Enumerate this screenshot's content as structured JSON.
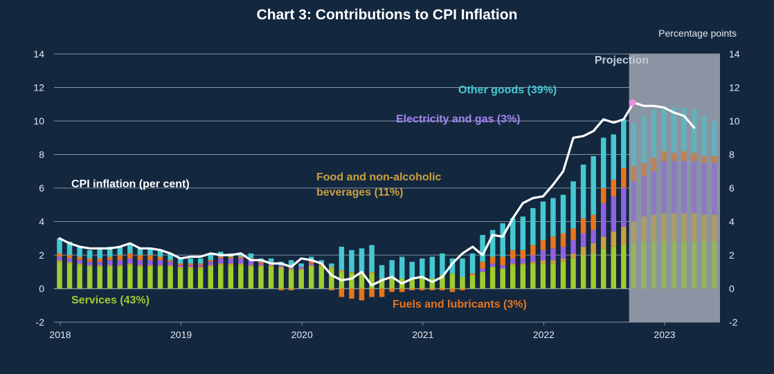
{
  "chart_data": {
    "type": "bar",
    "stacked": true,
    "title": "Chart 3: Contributions to CPI Inflation",
    "unit_label": "Percentage points",
    "projection_label": "Projection",
    "ylim": [
      -2,
      14
    ],
    "yticks": [
      "14",
      "12",
      "10",
      "8",
      "6",
      "4",
      "2",
      "0",
      "-2"
    ],
    "xticks": [
      "2018",
      "2019",
      "2020",
      "2021",
      "2022",
      "2023"
    ],
    "x_start": "2018-01",
    "projection_start": "2022-10",
    "grid": true,
    "series": [
      {
        "name": "Services (43%)",
        "color": "#9fcc2e",
        "values": [
          1.6,
          1.5,
          1.4,
          1.3,
          1.3,
          1.3,
          1.3,
          1.4,
          1.3,
          1.3,
          1.3,
          1.3,
          1.2,
          1.2,
          1.2,
          1.3,
          1.4,
          1.4,
          1.4,
          1.3,
          1.3,
          1.3,
          1.2,
          1.1,
          1.1,
          1.3,
          1.3,
          1.2,
          1.0,
          0.9,
          0.9,
          0.9,
          0.5,
          0.6,
          0.6,
          0.6,
          0.6,
          0.6,
          0.8,
          0.9,
          0.7,
          0.8,
          1.0,
          1.3,
          1.2,
          1.4,
          1.4,
          1.5,
          1.5,
          1.5,
          1.6,
          1.8,
          2.0,
          2.1,
          2.4,
          2.5,
          2.6,
          2.7,
          2.8,
          2.8,
          2.8,
          2.8,
          2.8,
          2.8,
          2.8,
          2.8
        ]
      },
      {
        "name": "Food and non-alcoholic beverages (11%)",
        "color": "#c9a13d",
        "values": [
          0.1,
          0.1,
          0.1,
          0.1,
          0.1,
          0.1,
          0.1,
          0.1,
          0.1,
          0.1,
          0.1,
          0.1,
          0.1,
          0.1,
          0.1,
          0.1,
          0.1,
          0.1,
          0.1,
          0.1,
          0.1,
          0.1,
          0.1,
          0.1,
          0.1,
          0.1,
          0.1,
          0.1,
          0.1,
          0.1,
          0.1,
          0.1,
          0.1,
          0.0,
          0.0,
          0.0,
          0.0,
          0.0,
          0.0,
          0.0,
          0.0,
          0.0,
          0.0,
          0.0,
          0.0,
          0.1,
          0.1,
          0.1,
          0.2,
          0.2,
          0.2,
          0.3,
          0.5,
          0.6,
          0.7,
          0.9,
          1.1,
          1.3,
          1.5,
          1.6,
          1.7,
          1.7,
          1.7,
          1.7,
          1.6,
          1.6
        ]
      },
      {
        "name": "Electricity and gas (3%)",
        "color": "#8f62e0",
        "values": [
          0.2,
          0.2,
          0.2,
          0.2,
          0.2,
          0.3,
          0.3,
          0.3,
          0.3,
          0.3,
          0.3,
          0.2,
          0.1,
          0.1,
          0.1,
          0.2,
          0.3,
          0.3,
          0.3,
          0.3,
          0.1,
          0.1,
          0.1,
          0.1,
          0.1,
          0.1,
          0.0,
          0.0,
          0.0,
          0.0,
          0.0,
          0.0,
          0.0,
          0.0,
          0.0,
          0.0,
          0.0,
          0.0,
          0.0,
          0.0,
          0.0,
          0.0,
          0.2,
          0.2,
          0.2,
          0.3,
          0.3,
          0.4,
          0.6,
          0.7,
          0.7,
          0.8,
          0.8,
          0.8,
          2.0,
          2.1,
          2.3,
          2.4,
          2.4,
          2.6,
          3.1,
          3.1,
          3.1,
          3.1,
          3.1,
          3.1
        ]
      },
      {
        "name": "Fuels and lubricants (3%)",
        "color": "#e8751c",
        "values": [
          0.2,
          0.2,
          0.2,
          0.2,
          0.2,
          0.2,
          0.3,
          0.3,
          0.3,
          0.3,
          0.2,
          0.1,
          0.1,
          0.1,
          0.1,
          0.1,
          0.1,
          0.1,
          0.1,
          0.1,
          0.1,
          0.1,
          -0.1,
          -0.1,
          0.0,
          0.2,
          0.1,
          -0.1,
          -0.5,
          -0.6,
          -0.7,
          -0.5,
          -0.5,
          -0.2,
          -0.2,
          -0.1,
          -0.1,
          -0.1,
          -0.1,
          -0.2,
          -0.1,
          0.1,
          0.4,
          0.4,
          0.5,
          0.5,
          0.5,
          0.6,
          0.6,
          0.7,
          0.8,
          0.7,
          0.9,
          0.9,
          0.9,
          1.0,
          1.2,
          0.9,
          0.8,
          0.8,
          0.6,
          0.5,
          0.6,
          0.5,
          0.4,
          0.4
        ]
      },
      {
        "name": "Other goods (39%)",
        "color": "#46c8d0",
        "values": [
          0.9,
          0.8,
          0.6,
          0.5,
          0.6,
          0.6,
          0.5,
          0.6,
          0.4,
          0.4,
          0.4,
          0.4,
          0.3,
          0.3,
          0.3,
          0.4,
          0.3,
          0.2,
          0.2,
          0.3,
          0.2,
          0.2,
          0.2,
          0.4,
          0.2,
          0.2,
          0.2,
          0.2,
          1.4,
          1.3,
          1.4,
          1.6,
          0.8,
          1.1,
          1.3,
          1.0,
          1.2,
          1.3,
          1.3,
          0.9,
          1.1,
          1.2,
          1.6,
          1.6,
          2.0,
          1.9,
          2.0,
          2.2,
          2.3,
          2.3,
          2.3,
          2.8,
          3.2,
          3.5,
          3.0,
          2.7,
          2.9,
          2.6,
          2.8,
          2.9,
          2.7,
          2.7,
          2.6,
          2.6,
          2.4,
          2.1
        ]
      }
    ],
    "line": {
      "name": "CPI inflation (per cent)",
      "color": "#ffffff",
      "values": [
        3.0,
        2.7,
        2.5,
        2.4,
        2.4,
        2.4,
        2.5,
        2.7,
        2.4,
        2.4,
        2.3,
        2.1,
        1.8,
        1.9,
        1.9,
        2.1,
        2.0,
        2.0,
        2.1,
        1.7,
        1.7,
        1.5,
        1.5,
        1.3,
        1.8,
        1.7,
        1.5,
        0.8,
        0.5,
        0.6,
        1.0,
        0.2,
        0.5,
        0.7,
        0.3,
        0.6,
        0.7,
        0.4,
        0.7,
        1.5,
        2.1,
        2.5,
        2.0,
        3.2,
        3.1,
        4.2,
        5.1,
        5.4,
        5.5,
        6.2,
        7.0,
        9.0,
        9.1,
        9.4,
        10.1,
        9.9,
        10.1,
        11.1,
        10.9,
        10.9,
        10.8,
        10.5,
        10.3,
        9.6
      ]
    },
    "projection_marker": {
      "value": 11.1,
      "color": "#f08bd8"
    },
    "annotations": {
      "other_goods": "Other goods (39%)",
      "electricity_gas": "Electricity and gas (3%)",
      "food_line1": "Food and non-alcoholic",
      "food_line2": "beverages (11%)",
      "cpi_line": "CPI inflation (per cent)",
      "services": "Services (43%)",
      "fuels": "Fuels and lubricants (3%)"
    },
    "colors": {
      "background": "#13273f",
      "grid": "#8795a8",
      "projection_shade": "#8a94a2",
      "other_goods_text": "#46c8d0",
      "electricity_text": "#a784f2",
      "food_text": "#c9a13d",
      "cpi_text": "#ffffff",
      "services_text": "#9fcc2e",
      "fuels_text": "#e8751c"
    }
  }
}
